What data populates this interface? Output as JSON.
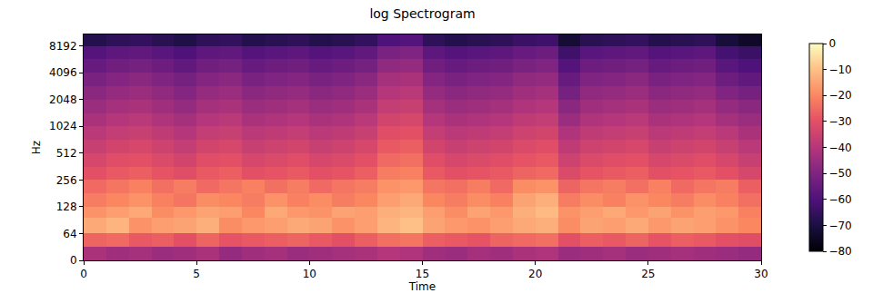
{
  "chart_data": {
    "type": "heatmap",
    "title": "log Spectrogram",
    "x_label": "Time",
    "y_label": "Hz",
    "log": "y",
    "xlim": [
      0,
      30
    ],
    "xticks": [
      0,
      5,
      10,
      15,
      20,
      25,
      30
    ],
    "ylim": [
      0,
      11025
    ],
    "yticks": [
      0,
      64,
      128,
      256,
      512,
      1024,
      2048,
      4096,
      8192
    ],
    "x_bins": [
      0,
      1,
      2,
      3,
      4,
      5,
      6,
      7,
      8,
      9,
      10,
      11,
      12,
      13,
      14,
      15,
      16,
      17,
      18,
      19,
      20,
      21,
      22,
      23,
      24,
      25,
      26,
      27,
      28,
      29,
      30
    ],
    "y_bins": [
      0,
      32,
      64,
      96,
      128,
      181,
      256,
      362,
      512,
      724,
      1024,
      1448,
      2048,
      2896,
      4096,
      5793,
      8192,
      11025
    ],
    "cells": [
      [
        -42,
        -44,
        -43,
        -45,
        -44,
        -42,
        -46,
        -44,
        -43,
        -45,
        -44,
        -43,
        -42,
        -40,
        -41,
        -44,
        -45,
        -43,
        -44,
        -42,
        -41,
        -45,
        -44,
        -43,
        -45,
        -44,
        -43,
        -44,
        -45,
        -46
      ],
      [
        -26,
        -25,
        -28,
        -27,
        -30,
        -26,
        -29,
        -28,
        -27,
        -26,
        -28,
        -30,
        -27,
        -24,
        -23,
        -27,
        -28,
        -29,
        -26,
        -25,
        -24,
        -30,
        -27,
        -28,
        -26,
        -29,
        -27,
        -28,
        -30,
        -31
      ],
      [
        -14,
        -12,
        -18,
        -16,
        -15,
        -13,
        -19,
        -17,
        -16,
        -14,
        -15,
        -18,
        -16,
        -12,
        -10,
        -15,
        -17,
        -18,
        -16,
        -14,
        -13,
        -19,
        -15,
        -16,
        -14,
        -17,
        -15,
        -16,
        -18,
        -20
      ],
      [
        -18,
        -16,
        -14,
        -19,
        -17,
        -15,
        -16,
        -20,
        -14,
        -17,
        -18,
        -15,
        -16,
        -13,
        -12,
        -16,
        -19,
        -15,
        -17,
        -13,
        -11,
        -18,
        -16,
        -14,
        -17,
        -15,
        -18,
        -16,
        -17,
        -21
      ],
      [
        -22,
        -20,
        -18,
        -21,
        -23,
        -19,
        -20,
        -22,
        -18,
        -21,
        -19,
        -22,
        -20,
        -16,
        -14,
        -20,
        -22,
        -19,
        -21,
        -15,
        -13,
        -22,
        -19,
        -21,
        -18,
        -20,
        -22,
        -19,
        -21,
        -24
      ],
      [
        -25,
        -23,
        -21,
        -24,
        -22,
        -25,
        -23,
        -21,
        -24,
        -22,
        -25,
        -23,
        -22,
        -18,
        -17,
        -23,
        -24,
        -22,
        -25,
        -19,
        -18,
        -26,
        -23,
        -22,
        -24,
        -21,
        -25,
        -23,
        -22,
        -27
      ],
      [
        -30,
        -28,
        -27,
        -29,
        -31,
        -28,
        -27,
        -30,
        -29,
        -28,
        -30,
        -29,
        -27,
        -22,
        -21,
        -28,
        -30,
        -29,
        -28,
        -26,
        -25,
        -32,
        -29,
        -28,
        -27,
        -30,
        -29,
        -28,
        -30,
        -33
      ],
      [
        -33,
        -31,
        -30,
        -32,
        -34,
        -31,
        -30,
        -33,
        -32,
        -31,
        -33,
        -32,
        -30,
        -25,
        -24,
        -31,
        -33,
        -32,
        -31,
        -29,
        -28,
        -35,
        -32,
        -31,
        -30,
        -33,
        -32,
        -31,
        -33,
        -36
      ],
      [
        -36,
        -34,
        -33,
        -35,
        -37,
        -34,
        -33,
        -36,
        -35,
        -34,
        -36,
        -35,
        -33,
        -28,
        -27,
        -34,
        -36,
        -35,
        -34,
        -32,
        -31,
        -38,
        -35,
        -34,
        -33,
        -36,
        -35,
        -34,
        -36,
        -39
      ],
      [
        -39,
        -37,
        -36,
        -38,
        -40,
        -37,
        -36,
        -39,
        -38,
        -37,
        -39,
        -38,
        -36,
        -31,
        -30,
        -37,
        -39,
        -38,
        -37,
        -35,
        -34,
        -41,
        -38,
        -37,
        -36,
        -39,
        -38,
        -37,
        -39,
        -42
      ],
      [
        -42,
        -40,
        -39,
        -41,
        -43,
        -40,
        -39,
        -42,
        -41,
        -40,
        -42,
        -41,
        -39,
        -34,
        -33,
        -40,
        -42,
        -41,
        -40,
        -38,
        -37,
        -45,
        -41,
        -40,
        -39,
        -42,
        -41,
        -40,
        -43,
        -45
      ],
      [
        -45,
        -43,
        -42,
        -44,
        -46,
        -43,
        -42,
        -45,
        -44,
        -43,
        -45,
        -44,
        -42,
        -37,
        -36,
        -43,
        -45,
        -44,
        -43,
        -41,
        -40,
        -48,
        -44,
        -43,
        -42,
        -45,
        -44,
        -43,
        -46,
        -48
      ],
      [
        -48,
        -46,
        -45,
        -47,
        -49,
        -46,
        -45,
        -48,
        -47,
        -46,
        -48,
        -47,
        -45,
        -40,
        -39,
        -46,
        -48,
        -47,
        -46,
        -44,
        -43,
        -52,
        -47,
        -46,
        -45,
        -48,
        -47,
        -46,
        -50,
        -52
      ],
      [
        -51,
        -49,
        -48,
        -50,
        -52,
        -49,
        -48,
        -51,
        -50,
        -49,
        -51,
        -50,
        -48,
        -43,
        -42,
        -49,
        -51,
        -50,
        -49,
        -47,
        -46,
        -55,
        -50,
        -49,
        -48,
        -51,
        -50,
        -49,
        -54,
        -56
      ],
      [
        -55,
        -53,
        -52,
        -54,
        -56,
        -53,
        -52,
        -55,
        -54,
        -53,
        -55,
        -54,
        -52,
        -47,
        -46,
        -53,
        -55,
        -54,
        -53,
        -51,
        -50,
        -59,
        -54,
        -53,
        -52,
        -55,
        -54,
        -53,
        -58,
        -60
      ],
      [
        -59,
        -57,
        -56,
        -58,
        -60,
        -57,
        -56,
        -59,
        -58,
        -57,
        -59,
        -58,
        -56,
        -51,
        -50,
        -57,
        -59,
        -58,
        -57,
        -55,
        -54,
        -63,
        -58,
        -57,
        -56,
        -59,
        -58,
        -57,
        -62,
        -64
      ],
      [
        -68,
        -66,
        -65,
        -67,
        -69,
        -66,
        -65,
        -68,
        -67,
        -66,
        -68,
        -67,
        -65,
        -60,
        -59,
        -66,
        -68,
        -67,
        -66,
        -64,
        -63,
        -72,
        -67,
        -66,
        -65,
        -68,
        -67,
        -66,
        -71,
        -74
      ]
    ],
    "colorbar": {
      "range": [
        -80,
        0
      ],
      "ticks": [
        0,
        {
          "value": -10,
          "label": "−10"
        },
        {
          "value": -20,
          "label": "−20"
        },
        {
          "value": -30,
          "label": "−30"
        },
        {
          "value": -40,
          "label": "−40"
        },
        {
          "value": -50,
          "label": "−50"
        },
        {
          "value": -60,
          "label": "−60"
        },
        {
          "value": -70,
          "label": "−70"
        },
        {
          "value": -80,
          "label": "−80"
        }
      ]
    }
  }
}
